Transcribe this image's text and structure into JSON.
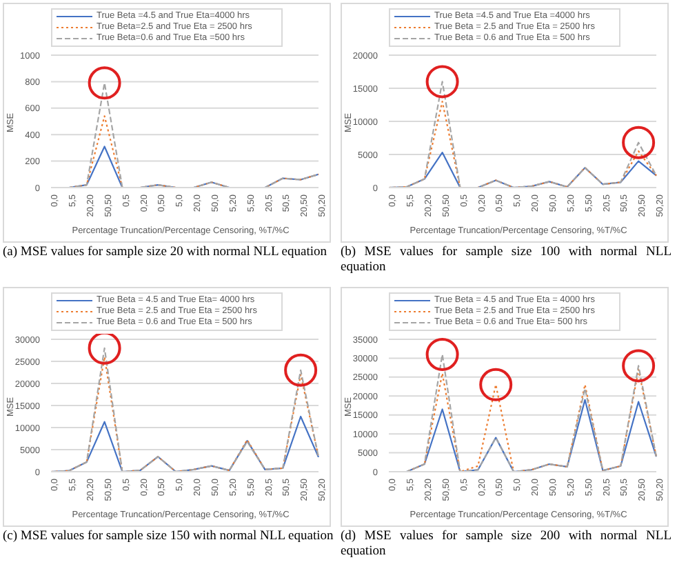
{
  "chart_data": [
    {
      "type": "line",
      "title": "(a) MSE values for sample size 20 with normal NLL equation",
      "xlabel": "Percentage Truncation/Percentage Censoring, %T/%C",
      "ylabel": "MSE",
      "categories": [
        "0,0",
        "5,5",
        "20,20",
        "50,50",
        "0,5",
        "0,20",
        "0,50",
        "5,0",
        "20,0",
        "50,0",
        "5,20",
        "5,50",
        "20,5",
        "50,5",
        "20,50",
        "50,20"
      ],
      "ylim": [
        0,
        1000
      ],
      "yticks": [
        0,
        200,
        400,
        600,
        800,
        1000
      ],
      "grid": "y",
      "legend": "top",
      "marker": "none",
      "series": [
        {
          "name": "True Beta =4.5 and True Eta=4000 hrs",
          "color": "#4472c4",
          "line_style": "solid",
          "values": [
            0,
            0,
            20,
            310,
            0,
            0,
            20,
            0,
            0,
            40,
            0,
            0,
            0,
            70,
            60,
            100
          ]
        },
        {
          "name": "True Beta=2.5 and True Eta = 2500 hrs",
          "color": "#ed7d31",
          "line_style": "dotted",
          "values": [
            0,
            0,
            20,
            540,
            0,
            0,
            20,
            0,
            0,
            40,
            0,
            0,
            0,
            70,
            60,
            100
          ]
        },
        {
          "name": "True Beta=0.6 and True Eta =500 hrs",
          "color": "#a5a5a5",
          "line_style": "dashed",
          "values": [
            0,
            0,
            20,
            790,
            0,
            0,
            20,
            0,
            0,
            40,
            0,
            0,
            0,
            70,
            60,
            100
          ]
        }
      ]
    },
    {
      "type": "line",
      "title": "(b) MSE values for sample size 100 with normal NLL equation",
      "xlabel": "Percentage Truncation/Percentage Censoring, %T/%C",
      "ylabel": "MSE",
      "categories": [
        "0,0",
        "5,5",
        "20,20",
        "50,50",
        "0,5",
        "0,20",
        "0,50",
        "5,0",
        "20,0",
        "50,0",
        "5,20",
        "5,50",
        "20,5",
        "50,5",
        "20,50",
        "50,20"
      ],
      "ylim": [
        0,
        20000
      ],
      "yticks": [
        0,
        5000,
        10000,
        15000,
        20000
      ],
      "grid": "y",
      "legend": "top",
      "marker": "none",
      "series": [
        {
          "name": "True Beta =4.5 and True Eta =4000 hrs",
          "color": "#4472c4",
          "line_style": "solid",
          "values": [
            0,
            100,
            1300,
            5300,
            0,
            0,
            1100,
            0,
            200,
            900,
            100,
            3000,
            500,
            800,
            4000,
            1800
          ]
        },
        {
          "name": "True Beta = 2.5 and True Eta = 2500 hrs",
          "color": "#ed7d31",
          "line_style": "dotted",
          "values": [
            0,
            100,
            1300,
            13000,
            0,
            0,
            1100,
            0,
            200,
            900,
            100,
            3000,
            500,
            800,
            5500,
            1800
          ]
        },
        {
          "name": "True Beta = 0.6 and True Eta = 500 hrs",
          "color": "#a5a5a5",
          "line_style": "dashed",
          "values": [
            0,
            100,
            1300,
            16000,
            0,
            0,
            1100,
            0,
            200,
            900,
            100,
            3000,
            500,
            800,
            6800,
            1800
          ]
        }
      ]
    },
    {
      "type": "line",
      "title": "(c) MSE values for sample size 150 with normal NLL equation",
      "xlabel": "Percentage Truncation/Percentage Censoring, %T/%C",
      "ylabel": "MSE",
      "categories": [
        "0,0",
        "5,5",
        "20,20",
        "50,50",
        "0,5",
        "0,20",
        "0,50",
        "5,0",
        "20,0",
        "50,0",
        "5,20",
        "5,50",
        "20,5",
        "50,5",
        "20,50",
        "50,20"
      ],
      "ylim": [
        0,
        30000
      ],
      "yticks": [
        0,
        5000,
        10000,
        15000,
        20000,
        25000,
        30000
      ],
      "grid": "y",
      "legend": "top",
      "marker": "none",
      "series": [
        {
          "name": "True Beta = 4.5 and True Eta= 4000 hrs",
          "color": "#4472c4",
          "line_style": "solid",
          "values": [
            0,
            200,
            2200,
            11300,
            0,
            300,
            3400,
            0,
            500,
            1300,
            300,
            7000,
            500,
            800,
            12500,
            3300
          ]
        },
        {
          "name": "True Beta = 2.5 and True Eta = 2500 hrs",
          "color": "#ed7d31",
          "line_style": "dotted",
          "values": [
            0,
            200,
            2200,
            26000,
            0,
            300,
            3400,
            0,
            500,
            1300,
            300,
            7200,
            500,
            800,
            22000,
            3300
          ]
        },
        {
          "name": "True Beta = 0.6 and True Eta = 500 hrs",
          "color": "#a5a5a5",
          "line_style": "dashed",
          "values": [
            0,
            200,
            2200,
            28000,
            0,
            300,
            3400,
            0,
            500,
            1300,
            300,
            6800,
            500,
            800,
            23000,
            3300
          ]
        }
      ]
    },
    {
      "type": "line",
      "title": "(d) MSE values for sample size 200 with normal NLL equation",
      "xlabel": "Percentage Truncation/Percentage Censoring, %T/%C",
      "ylabel": "MSE",
      "categories": [
        "0,0",
        "5,5",
        "20,20",
        "50,50",
        "0,5",
        "0,20",
        "0,50",
        "5,0",
        "20,0",
        "50,0",
        "5,20",
        "5,50",
        "20,5",
        "50,5",
        "20,50",
        "50,20"
      ],
      "ylim": [
        0,
        35000
      ],
      "yticks": [
        0,
        5000,
        10000,
        15000,
        20000,
        25000,
        30000,
        35000
      ],
      "grid": "y",
      "legend": "top",
      "marker": "none",
      "series": [
        {
          "name": "True Beta = 4.5 and True Eta = 4000 hrs",
          "color": "#4472c4",
          "line_style": "solid",
          "values": [
            0,
            0,
            2000,
            16500,
            0,
            500,
            9000,
            0,
            500,
            2000,
            1300,
            19000,
            300,
            1500,
            18500,
            4000
          ]
        },
        {
          "name": "True Beta = 2.5 and True Eta = 2500 hrs",
          "color": "#ed7d31",
          "line_style": "dotted",
          "values": [
            0,
            0,
            2000,
            26000,
            0,
            1500,
            23000,
            0,
            500,
            2000,
            1300,
            23000,
            300,
            1500,
            27000,
            4000
          ]
        },
        {
          "name": "True Beta = 0.6 and True Eta= 500 hrs",
          "color": "#a5a5a5",
          "line_style": "dashed",
          "values": [
            0,
            0,
            2000,
            31000,
            0,
            500,
            9000,
            0,
            500,
            2000,
            1300,
            22000,
            300,
            1500,
            28000,
            4000
          ]
        }
      ]
    }
  ]
}
